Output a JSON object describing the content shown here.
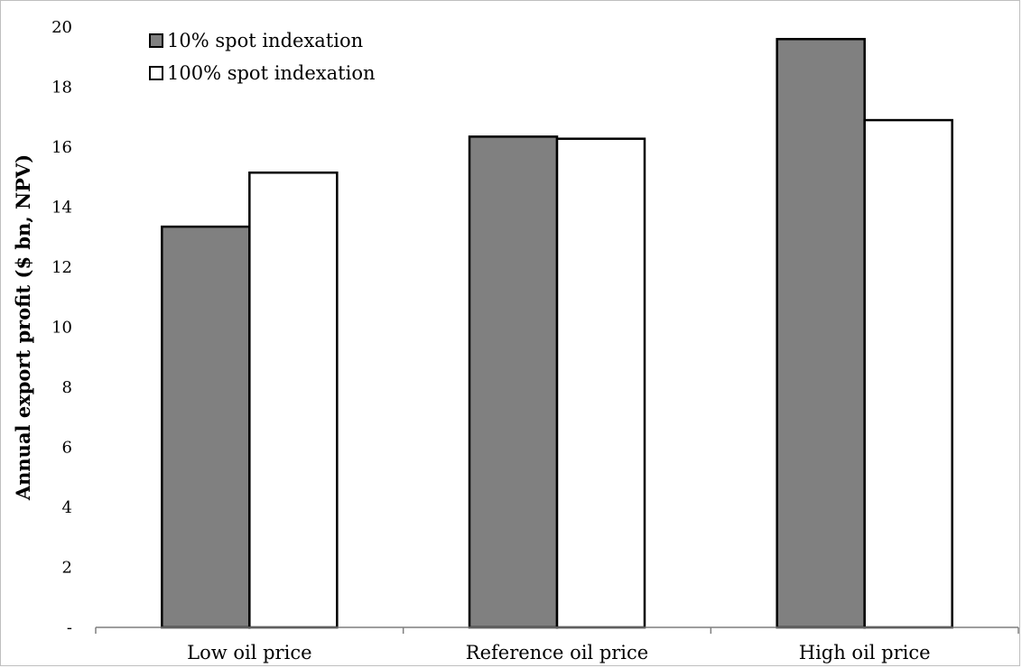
{
  "chart_data": {
    "type": "bar",
    "title": "",
    "xlabel": "",
    "ylabel": "Annual export profit ($ bn, NPV)",
    "categories": [
      "Low oil price",
      "Reference oil price",
      "High oil price"
    ],
    "series": [
      {
        "name": "10% spot indexation",
        "values": [
          13.35,
          16.35,
          19.6
        ],
        "color": "#808080"
      },
      {
        "name": "100% spot indexation",
        "values": [
          15.15,
          16.28,
          16.9
        ],
        "color": "#ffffff"
      }
    ],
    "ylim": [
      0,
      20
    ],
    "yticks": [
      0,
      2,
      4,
      6,
      8,
      10,
      12,
      14,
      16,
      18,
      20
    ],
    "ytick_labels": [
      "-",
      "2",
      "4",
      "6",
      "8",
      "10",
      "12",
      "14",
      "16",
      "18",
      "20"
    ],
    "grid": false,
    "legend_position": "top-left"
  }
}
